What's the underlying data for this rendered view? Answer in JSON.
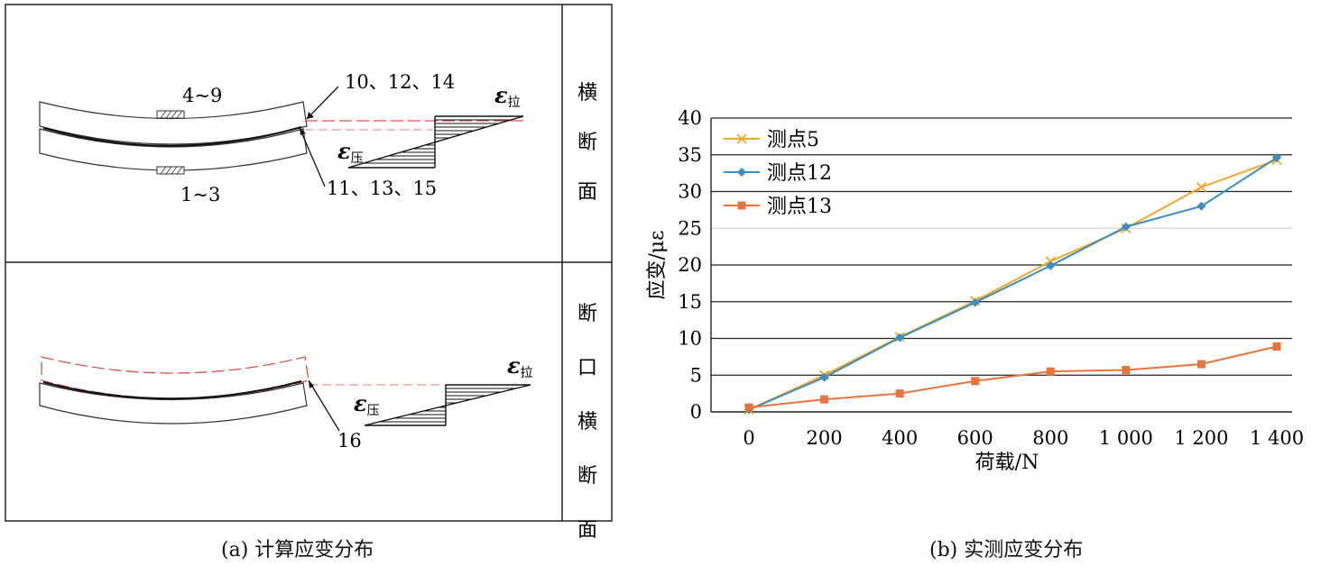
{
  "panel_a": {
    "caption": "(a) 计算应变分布",
    "side_labels": [
      "横断面",
      "断口横断面"
    ],
    "top": {
      "label_upper_gauge": "4~9",
      "label_lower_gauge": "1~3",
      "label_top_points": "10、12、14",
      "label_bottom_points": "11、13、15",
      "eps_symbol": "ε",
      "tension_sub": "拉",
      "compression_sub": "压"
    },
    "bottom": {
      "label_point": "16",
      "eps_symbol": "ε",
      "tension_sub": "拉",
      "compression_sub": "压"
    }
  },
  "panel_b": {
    "caption": "(b) 实测应变分布"
  },
  "chart_data": {
    "type": "line",
    "xlabel": "荷载/N",
    "ylabel": "应变/με",
    "categories": [
      "0",
      "200",
      "400",
      "600",
      "800",
      "1 000",
      "1 200",
      "1 400"
    ],
    "x": [
      0,
      200,
      400,
      600,
      800,
      1000,
      1200,
      1400
    ],
    "ylim": [
      0,
      40
    ],
    "yticks": [
      0,
      5,
      10,
      15,
      20,
      25,
      30,
      35,
      40
    ],
    "grid": true,
    "legend_position": "top-left",
    "series": [
      {
        "name": "测点5",
        "color": "#f5a623",
        "marker": "x",
        "values": [
          0.3,
          5.0,
          10.2,
          15.1,
          20.5,
          25.0,
          30.6,
          34.3
        ]
      },
      {
        "name": "测点12",
        "color": "#3a8fc2",
        "marker": "diamond",
        "values": [
          0.3,
          4.7,
          10.1,
          14.9,
          19.9,
          25.2,
          28.0,
          34.6
        ]
      },
      {
        "name": "测点13",
        "color": "#e8743b",
        "marker": "square",
        "values": [
          0.6,
          1.7,
          2.5,
          4.2,
          5.5,
          5.7,
          6.5,
          8.9
        ]
      }
    ]
  }
}
